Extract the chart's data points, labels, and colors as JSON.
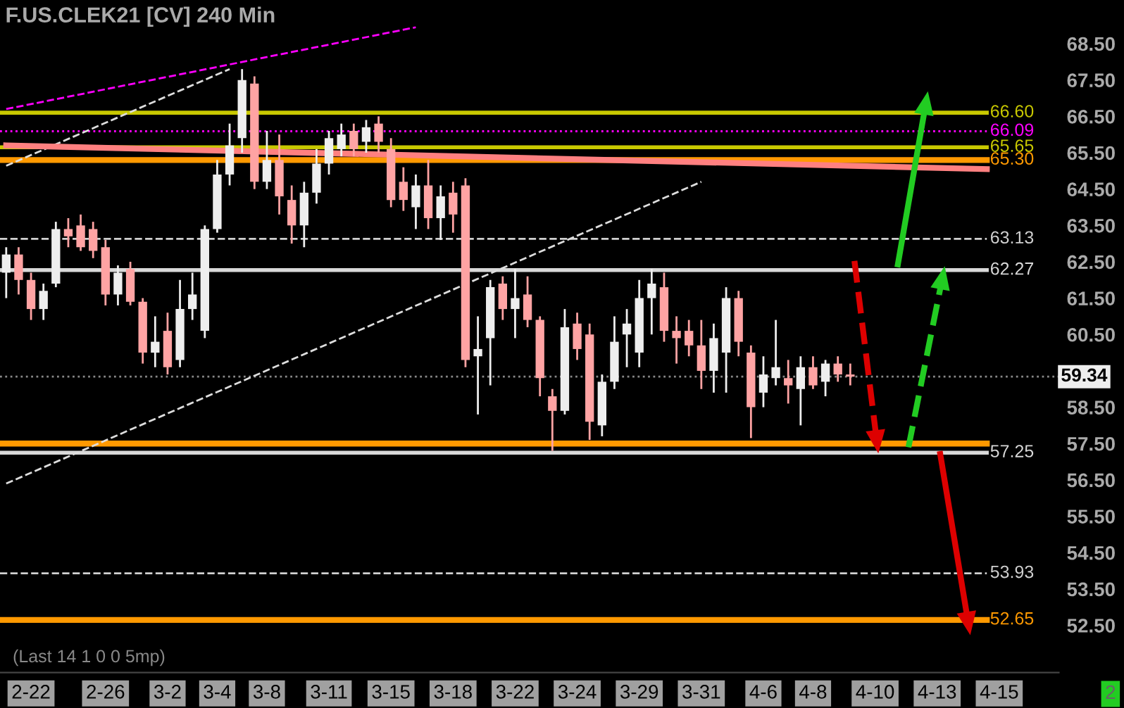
{
  "chart_data": {
    "type": "candlestick",
    "title": "F.US.CLEK21 [CV] 240 Min",
    "categories": [
      null,
      null,
      "2-22",
      null,
      null,
      null,
      null,
      null,
      "2-26",
      null,
      null,
      null,
      null,
      "3-2",
      null,
      null,
      null,
      "3-4",
      null,
      null,
      null,
      "3-8",
      null,
      null,
      null,
      null,
      "3-11",
      null,
      null,
      null,
      null,
      "3-15",
      null,
      null,
      null,
      null,
      "3-18",
      null,
      null,
      null,
      null,
      "3-22",
      null,
      null,
      null,
      null,
      "3-24",
      null,
      null,
      null,
      null,
      "3-29",
      null,
      null,
      null,
      null,
      "3-31",
      null,
      null,
      null,
      null,
      "4-6",
      null,
      null,
      null,
      "4-8",
      null,
      null,
      null,
      null,
      "4-10",
      null,
      null,
      null,
      null,
      "4-13",
      null,
      null,
      null,
      null,
      "4-15"
    ],
    "ohlc": [
      [
        62.2,
        62.9,
        61.5,
        62.7
      ],
      [
        62.7,
        62.9,
        61.6,
        62.0
      ],
      [
        62.0,
        62.2,
        60.9,
        61.2
      ],
      [
        61.2,
        61.9,
        60.9,
        61.7
      ],
      [
        61.9,
        63.6,
        61.8,
        63.4
      ],
      [
        63.4,
        63.7,
        62.9,
        63.2
      ],
      [
        63.5,
        63.8,
        62.8,
        62.9
      ],
      [
        63.4,
        63.6,
        62.6,
        62.8
      ],
      [
        62.9,
        63.1,
        61.3,
        61.6
      ],
      [
        61.6,
        62.4,
        61.3,
        62.2
      ],
      [
        62.3,
        62.5,
        61.3,
        61.4
      ],
      [
        61.4,
        61.5,
        59.7,
        60.0
      ],
      [
        60.0,
        61.0,
        59.6,
        60.3
      ],
      [
        60.6,
        61.1,
        59.4,
        59.6
      ],
      [
        59.8,
        62.0,
        59.6,
        61.2
      ],
      [
        61.2,
        62.2,
        60.9,
        61.6
      ],
      [
        60.6,
        63.5,
        60.4,
        63.4
      ],
      [
        63.4,
        65.3,
        63.3,
        64.9
      ],
      [
        64.9,
        66.3,
        64.6,
        65.7
      ],
      [
        65.9,
        67.8,
        65.5,
        67.5
      ],
      [
        67.4,
        67.6,
        64.5,
        64.7
      ],
      [
        64.7,
        66.1,
        64.5,
        65.3
      ],
      [
        65.3,
        66.0,
        63.8,
        64.3
      ],
      [
        64.2,
        64.6,
        63.0,
        63.5
      ],
      [
        63.5,
        64.7,
        62.9,
        64.4
      ],
      [
        64.4,
        65.6,
        64.1,
        65.2
      ],
      [
        65.2,
        66.1,
        64.9,
        65.9
      ],
      [
        65.6,
        66.3,
        65.4,
        66.0
      ],
      [
        66.1,
        66.3,
        65.4,
        65.6
      ],
      [
        65.8,
        66.4,
        65.5,
        66.2
      ],
      [
        66.3,
        66.5,
        65.5,
        65.8
      ],
      [
        65.6,
        65.9,
        64.0,
        64.2
      ],
      [
        64.7,
        65.1,
        63.9,
        64.2
      ],
      [
        64.0,
        64.9,
        63.4,
        64.6
      ],
      [
        64.6,
        65.3,
        63.4,
        63.7
      ],
      [
        63.7,
        64.6,
        63.1,
        64.3
      ],
      [
        64.4,
        64.7,
        63.3,
        63.8
      ],
      [
        64.6,
        64.8,
        59.6,
        59.8
      ],
      [
        59.9,
        61.0,
        58.3,
        60.1
      ],
      [
        60.4,
        62.0,
        59.1,
        61.8
      ],
      [
        61.9,
        62.1,
        60.9,
        61.2
      ],
      [
        61.2,
        62.3,
        60.4,
        61.5
      ],
      [
        61.6,
        62.1,
        60.7,
        60.9
      ],
      [
        60.9,
        61.0,
        58.8,
        59.3
      ],
      [
        58.8,
        59.0,
        57.3,
        58.4
      ],
      [
        58.4,
        61.2,
        58.3,
        60.7
      ],
      [
        60.8,
        61.1,
        59.8,
        60.1
      ],
      [
        60.5,
        60.8,
        57.6,
        58.1
      ],
      [
        58.0,
        59.4,
        57.7,
        59.2
      ],
      [
        59.2,
        61.0,
        59.0,
        60.3
      ],
      [
        60.5,
        61.2,
        59.6,
        60.8
      ],
      [
        60.0,
        62.0,
        59.6,
        61.5
      ],
      [
        61.5,
        62.3,
        60.5,
        61.9
      ],
      [
        61.8,
        62.2,
        60.3,
        60.6
      ],
      [
        60.6,
        61.0,
        59.7,
        60.4
      ],
      [
        60.6,
        60.9,
        59.9,
        60.2
      ],
      [
        60.2,
        60.9,
        59.0,
        59.5
      ],
      [
        59.5,
        60.8,
        58.9,
        60.4
      ],
      [
        60.0,
        61.8,
        58.9,
        61.5
      ],
      [
        61.5,
        61.7,
        59.9,
        60.3
      ],
      [
        60.0,
        60.2,
        57.65,
        58.5
      ],
      [
        58.9,
        59.9,
        58.5,
        59.4
      ],
      [
        59.3,
        60.9,
        59.1,
        59.6
      ],
      [
        59.3,
        59.8,
        58.6,
        59.1
      ],
      [
        59.0,
        59.9,
        58.0,
        59.6
      ],
      [
        59.6,
        59.9,
        59.0,
        59.1
      ],
      [
        59.2,
        59.8,
        58.8,
        59.7
      ],
      [
        59.7,
        59.9,
        59.2,
        59.4
      ],
      [
        59.4,
        59.7,
        59.1,
        59.34
      ],
      null,
      null,
      null,
      null,
      null,
      null,
      null,
      null,
      null,
      null,
      null,
      null
    ],
    "series": [
      {
        "type": "line",
        "color": "#ff00ff",
        "line_style": "dashed",
        "values": [
          66.7,
          null,
          null,
          null,
          null,
          null,
          null,
          null,
          null,
          null,
          null,
          null,
          null,
          null,
          null,
          null,
          null,
          null,
          null,
          null,
          null,
          null,
          null,
          null,
          null,
          null,
          null,
          null,
          null,
          null,
          null,
          null,
          null,
          68.95,
          null,
          null,
          null,
          null,
          null,
          null,
          null,
          null,
          null,
          null,
          null,
          null,
          null,
          null,
          null,
          null,
          null,
          null,
          null,
          null,
          null,
          null,
          null,
          null,
          null,
          null,
          null,
          null,
          null,
          null,
          null,
          null,
          null,
          null,
          null,
          null,
          null,
          null,
          null,
          null,
          null,
          null,
          null,
          null,
          null,
          null,
          null
        ]
      },
      {
        "type": "line",
        "color": "#dddddd",
        "line_style": "dashed",
        "values": [
          65.14,
          null,
          null,
          null,
          null,
          null,
          null,
          null,
          null,
          null,
          null,
          null,
          null,
          null,
          null,
          null,
          null,
          null,
          67.8,
          null,
          null,
          null,
          null,
          null,
          null,
          null,
          null,
          null,
          null,
          null,
          null,
          null,
          null,
          null,
          null,
          null,
          null,
          null,
          null,
          null,
          null,
          null,
          null,
          null,
          null,
          null,
          null,
          null,
          null,
          null,
          null,
          null,
          null,
          null,
          null,
          null,
          null,
          null,
          null,
          null,
          null,
          null,
          null,
          null,
          null,
          null,
          null,
          null,
          null,
          null,
          null,
          null,
          null,
          null,
          null,
          null,
          null,
          null,
          null,
          null,
          null
        ]
      },
      {
        "type": "line",
        "color": "#dddddd",
        "line_style": "dashed",
        "values": [
          56.4,
          null,
          null,
          null,
          null,
          null,
          null,
          null,
          null,
          null,
          null,
          null,
          null,
          null,
          null,
          null,
          null,
          null,
          null,
          null,
          null,
          null,
          null,
          null,
          null,
          null,
          null,
          null,
          null,
          null,
          null,
          null,
          null,
          null,
          null,
          null,
          null,
          null,
          null,
          null,
          null,
          null,
          null,
          null,
          null,
          null,
          null,
          null,
          null,
          null,
          null,
          null,
          null,
          null,
          null,
          null,
          64.7,
          null,
          null,
          null,
          null,
          null,
          null,
          null,
          null,
          null,
          null,
          null,
          null,
          null,
          null,
          null,
          null,
          null,
          null,
          null,
          null,
          null,
          null,
          null,
          null
        ]
      },
      {
        "type": "line",
        "color": "#ff8080",
        "line_style": "solid",
        "values": [
          65.7,
          null,
          null,
          null,
          null,
          null,
          null,
          null,
          null,
          null,
          null,
          null,
          null,
          null,
          null,
          null,
          null,
          null,
          null,
          null,
          null,
          null,
          null,
          null,
          null,
          null,
          null,
          null,
          null,
          null,
          null,
          null,
          null,
          null,
          null,
          null,
          null,
          null,
          null,
          null,
          null,
          null,
          null,
          null,
          null,
          null,
          null,
          null,
          null,
          null,
          null,
          null,
          null,
          null,
          null,
          null,
          null,
          null,
          null,
          null,
          null,
          null,
          null,
          null,
          null,
          null,
          null,
          null,
          null,
          null,
          null,
          null,
          null,
          null,
          null,
          null,
          null,
          null,
          null,
          65.05,
          null
        ]
      }
    ],
    "ylim": [
      51.2,
      69.7
    ],
    "yticks": [
      {
        "value": 52.5,
        "label": "52.50"
      },
      {
        "value": 53.5,
        "label": "53.50"
      },
      {
        "value": 54.5,
        "label": "54.50"
      },
      {
        "value": 55.5,
        "label": "55.50"
      },
      {
        "value": 56.5,
        "label": "56.50"
      },
      {
        "value": 57.5,
        "label": "57.50"
      },
      {
        "value": 58.5,
        "label": "58.50"
      },
      {
        "value": 60.5,
        "label": "60.50"
      },
      {
        "value": 61.5,
        "label": "61.50"
      },
      {
        "value": 62.5,
        "label": "62.50"
      },
      {
        "value": 63.5,
        "label": "63.50"
      },
      {
        "value": 64.5,
        "label": "64.50"
      },
      {
        "value": 65.5,
        "label": "65.50"
      },
      {
        "value": 66.5,
        "label": "66.50"
      },
      {
        "value": 67.5,
        "label": "67.50"
      },
      {
        "value": 68.5,
        "label": "68.50"
      }
    ],
    "ref_lines": [
      {
        "axis": "y",
        "value": 66.6,
        "label": "66.60",
        "color": "#c8c800",
        "line_style": "solid"
      },
      {
        "axis": "y",
        "value": 66.09,
        "label": "66.09",
        "color": "#ff00ff",
        "line_style": "dotted"
      },
      {
        "axis": "y",
        "value": 65.65,
        "label": "65.65",
        "color": "#c8c800",
        "line_style": "solid"
      },
      {
        "axis": "y",
        "value": 65.3,
        "label": "65.30",
        "color": "#ff9900",
        "line_style": "solid"
      },
      {
        "axis": "y",
        "value": 63.13,
        "label": "63.13",
        "color": "#d0d0d0",
        "line_style": "dashed"
      },
      {
        "axis": "y",
        "value": 62.27,
        "label": "62.27",
        "color": "#d8d8d8",
        "line_style": "solid"
      },
      {
        "axis": "y",
        "value": 59.34,
        "label": "59.34",
        "color": "#888888",
        "line_style": "dotted"
      },
      {
        "axis": "y",
        "value": 57.5,
        "label": null,
        "color": "#ff9900",
        "line_style": "solid"
      },
      {
        "axis": "y",
        "value": 57.25,
        "label": "57.25",
        "color": "#d8d8d8",
        "line_style": "solid"
      },
      {
        "axis": "y",
        "value": 53.93,
        "label": "53.93",
        "color": "#d0d0d0",
        "line_style": "dashed"
      },
      {
        "axis": "y",
        "value": 52.65,
        "label": "52.65",
        "color": "#ff9900",
        "line_style": "solid"
      }
    ],
    "annotations": [
      "(Last 14 1 0 0 5mp)",
      "2"
    ],
    "grid": false
  }
}
